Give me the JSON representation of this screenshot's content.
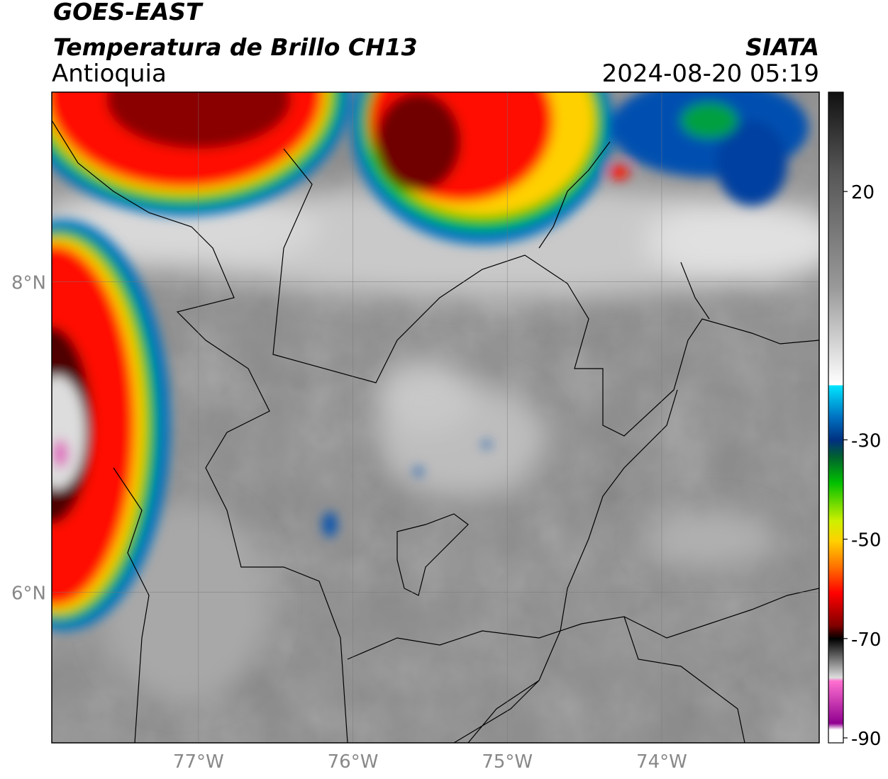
{
  "header": {
    "satellite": "GOES-EAST",
    "product": "Temperatura de Brillo CH13",
    "region": "Antioquia",
    "agency": "SIATA",
    "datetime": "2024-08-20 05:19"
  },
  "map": {
    "xlim": [
      -77.95,
      -72.98
    ],
    "ylim": [
      5.03,
      9.22
    ],
    "xticks": [
      {
        "value": -77,
        "label": "77°W"
      },
      {
        "value": -76,
        "label": "76°W"
      },
      {
        "value": -75,
        "label": "75°W"
      },
      {
        "value": -74,
        "label": "74°W"
      }
    ],
    "yticks": [
      {
        "value": 6,
        "label": "6°N"
      },
      {
        "value": 8,
        "label": "8°N"
      }
    ]
  },
  "colorbar": {
    "lim": [
      -91,
      40
    ],
    "ticks": [
      20,
      -30,
      -50,
      -70,
      -90
    ]
  }
}
